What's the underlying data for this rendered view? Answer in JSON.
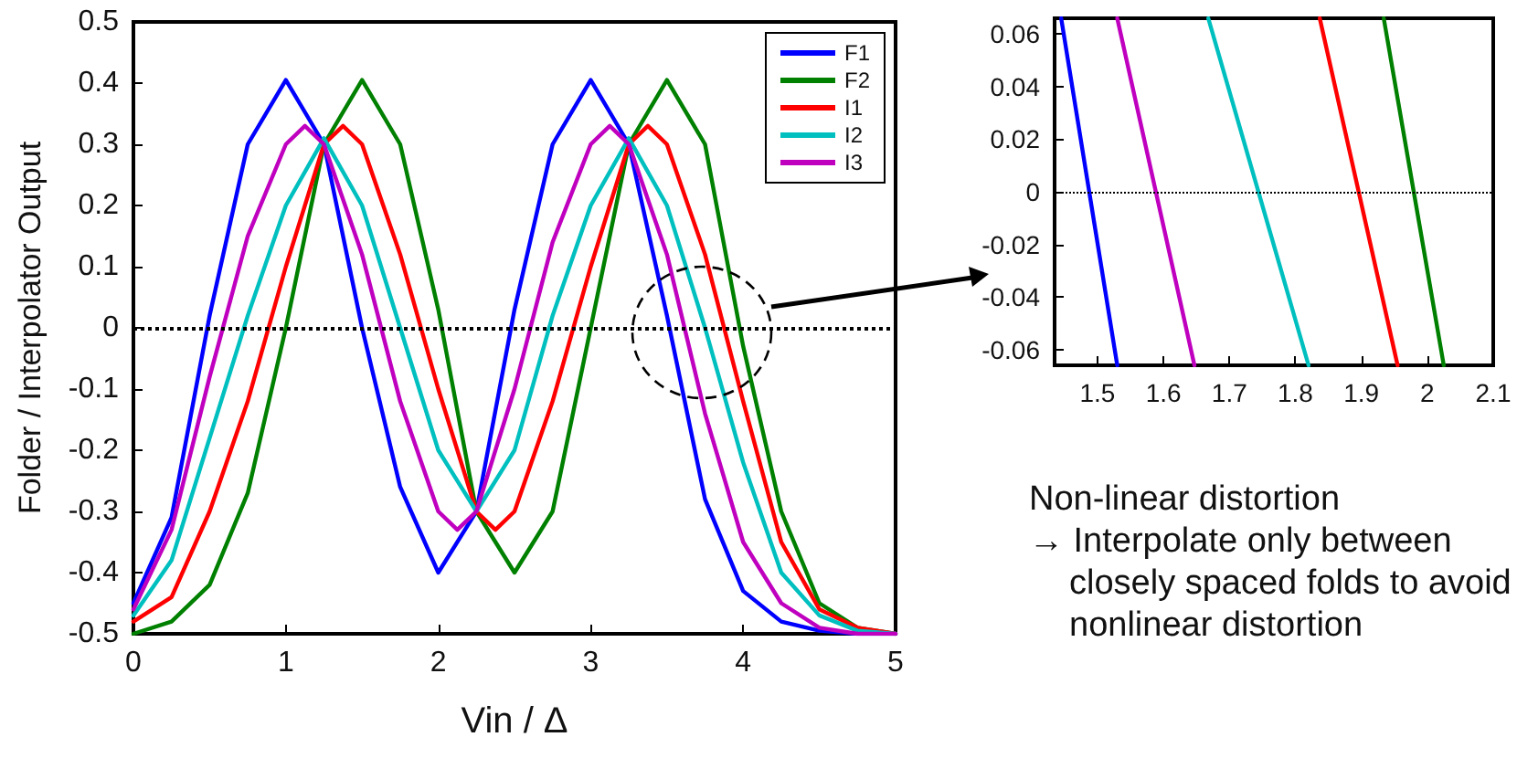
{
  "chart_data": [
    {
      "type": "line",
      "xlabel": "Vin / Δ",
      "ylabel": "Folder / Interpolator Output",
      "xlim": [
        0,
        5
      ],
      "ylim": [
        -0.5,
        0.5
      ],
      "xticks": [
        0,
        1,
        2,
        3,
        4,
        5
      ],
      "yticks": [
        -0.5,
        -0.4,
        -0.3,
        -0.2,
        -0.1,
        0,
        0.1,
        0.2,
        0.3,
        0.4,
        0.5
      ],
      "grid": false,
      "legend": "top right",
      "marker": "none",
      "line_style": "solid",
      "ref_lines": [
        {
          "axis": "y",
          "value": 0,
          "line_style": "dotted",
          "color": "#000000"
        }
      ],
      "series": [
        {
          "name": "F1",
          "color": "#0000ff",
          "x": [
            0,
            0.25,
            0.5,
            0.75,
            1,
            1.25,
            1.5,
            1.75,
            2,
            2.25,
            2.5,
            2.75,
            3,
            3.25,
            3.5,
            3.75,
            4,
            4.25,
            4.5,
            4.75,
            5
          ],
          "values": [
            -0.45,
            -0.31,
            0.02,
            0.3,
            0.405,
            0.3,
            0.0,
            -0.26,
            -0.4,
            -0.3,
            0.03,
            0.3,
            0.405,
            0.3,
            0.02,
            -0.28,
            -0.43,
            -0.48,
            -0.495,
            -0.5,
            -0.5
          ]
        },
        {
          "name": "F2",
          "color": "#008000",
          "x": [
            0,
            0.25,
            0.5,
            0.75,
            1,
            1.25,
            1.5,
            1.75,
            2,
            2.25,
            2.5,
            2.75,
            3,
            3.25,
            3.5,
            3.75,
            4,
            4.25,
            4.5,
            4.75,
            5
          ],
          "values": [
            -0.5,
            -0.48,
            -0.42,
            -0.27,
            0.0,
            0.3,
            0.405,
            0.3,
            0.03,
            -0.3,
            -0.4,
            -0.3,
            0.0,
            0.3,
            0.405,
            0.3,
            -0.03,
            -0.3,
            -0.45,
            -0.49,
            -0.5
          ]
        },
        {
          "name": "I1",
          "color": "#ff0000",
          "x": [
            0,
            0.25,
            0.5,
            0.75,
            1,
            1.25,
            1.375,
            1.5,
            1.75,
            2,
            2.25,
            2.375,
            2.5,
            2.75,
            3,
            3.25,
            3.375,
            3.5,
            3.75,
            4,
            4.25,
            4.5,
            4.75,
            5
          ],
          "values": [
            -0.48,
            -0.44,
            -0.3,
            -0.12,
            0.1,
            0.3,
            0.33,
            0.3,
            0.12,
            -0.1,
            -0.3,
            -0.33,
            -0.3,
            -0.12,
            0.1,
            0.3,
            0.33,
            0.3,
            0.12,
            -0.12,
            -0.35,
            -0.46,
            -0.49,
            -0.5
          ]
        },
        {
          "name": "I2",
          "color": "#00bfbf",
          "x": [
            0,
            0.25,
            0.5,
            0.75,
            1,
            1.25,
            1.5,
            1.75,
            2,
            2.25,
            2.5,
            2.75,
            3,
            3.25,
            3.5,
            3.75,
            4,
            4.25,
            4.5,
            4.75,
            5
          ],
          "values": [
            -0.47,
            -0.38,
            -0.18,
            0.02,
            0.2,
            0.31,
            0.2,
            0.0,
            -0.2,
            -0.3,
            -0.2,
            0.02,
            0.2,
            0.31,
            0.2,
            0.0,
            -0.22,
            -0.4,
            -0.47,
            -0.495,
            -0.5
          ]
        },
        {
          "name": "I3",
          "color": "#bf00bf",
          "x": [
            0,
            0.25,
            0.5,
            0.75,
            1,
            1.125,
            1.25,
            1.5,
            1.75,
            2,
            2.125,
            2.25,
            2.5,
            2.75,
            3,
            3.125,
            3.25,
            3.5,
            3.75,
            4,
            4.25,
            4.5,
            4.75,
            5
          ],
          "values": [
            -0.46,
            -0.33,
            -0.08,
            0.15,
            0.3,
            0.33,
            0.3,
            0.12,
            -0.12,
            -0.3,
            -0.33,
            -0.3,
            -0.1,
            0.14,
            0.3,
            0.33,
            0.3,
            0.12,
            -0.14,
            -0.35,
            -0.45,
            -0.49,
            -0.5,
            -0.5
          ]
        }
      ]
    },
    {
      "type": "line",
      "xlim": [
        1.435,
        2.1
      ],
      "ylim": [
        -0.066,
        0.066
      ],
      "xticks": [
        1.5,
        1.6,
        1.7,
        1.8,
        1.9,
        2,
        2.1
      ],
      "yticks": [
        -0.06,
        -0.04,
        -0.02,
        0,
        0.02,
        0.04,
        0.06
      ],
      "grid": false,
      "legend": false,
      "marker": "none",
      "line_style": "solid",
      "ref_lines": [
        {
          "axis": "y",
          "value": 0,
          "line_style": "dotted",
          "color": "#000000"
        }
      ],
      "annotations": [
        "Non-linear distortion",
        "→ Interpolate only between closely spaced folds to avoid nonlinear distortion"
      ],
      "series": [
        {
          "color": "#0000ff",
          "x": [
            1.445,
            1.53
          ],
          "values": [
            0.066,
            -0.066
          ]
        },
        {
          "color": "#bf00bf",
          "x": [
            1.53,
            1.647
          ],
          "values": [
            0.066,
            -0.066
          ]
        },
        {
          "color": "#00bfbf",
          "x": [
            1.668,
            1.82
          ],
          "values": [
            0.066,
            -0.066
          ]
        },
        {
          "color": "#ff0000",
          "x": [
            1.837,
            1.955
          ],
          "values": [
            0.066,
            -0.066
          ]
        },
        {
          "color": "#008000",
          "x": [
            1.934,
            2.025
          ],
          "values": [
            0.066,
            -0.066
          ]
        }
      ]
    }
  ]
}
